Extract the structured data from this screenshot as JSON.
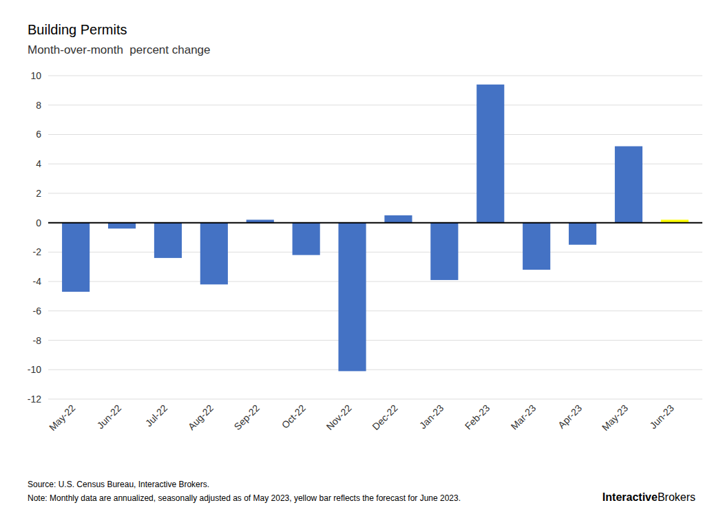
{
  "chart_data": {
    "type": "bar",
    "title": "Building Permits",
    "subtitle": "Month-over-month  percent change",
    "categories": [
      "May-22",
      "Jun-22",
      "Jul-22",
      "Aug-22",
      "Sep-22",
      "Oct-22",
      "Nov-22",
      "Dec-22",
      "Jan-23",
      "Feb-23",
      "Mar-23",
      "Apr-23",
      "May-23",
      "Jun-23"
    ],
    "values": [
      -4.7,
      -0.4,
      -2.4,
      -4.2,
      0.2,
      -2.2,
      -10.1,
      0.5,
      -3.9,
      9.4,
      -3.2,
      -1.5,
      5.2,
      0.2
    ],
    "colors": [
      "#4472c4",
      "#4472c4",
      "#4472c4",
      "#4472c4",
      "#4472c4",
      "#4472c4",
      "#4472c4",
      "#4472c4",
      "#4472c4",
      "#4472c4",
      "#4472c4",
      "#4472c4",
      "#4472c4",
      "#ffff00"
    ],
    "ylim": [
      -12,
      10
    ],
    "yticks": [
      -12,
      -10,
      -8,
      -6,
      -4,
      -2,
      0,
      2,
      4,
      6,
      8,
      10
    ],
    "grid": true,
    "annotations": [
      "Source: U.S. Census Bureau, Interactive Brokers.",
      "Note: Monthly data are annualized, seasonally adjusted as of May 2023, yellow bar reflects the forecast for June 2023.",
      "Interactive",
      "Brokers"
    ]
  }
}
